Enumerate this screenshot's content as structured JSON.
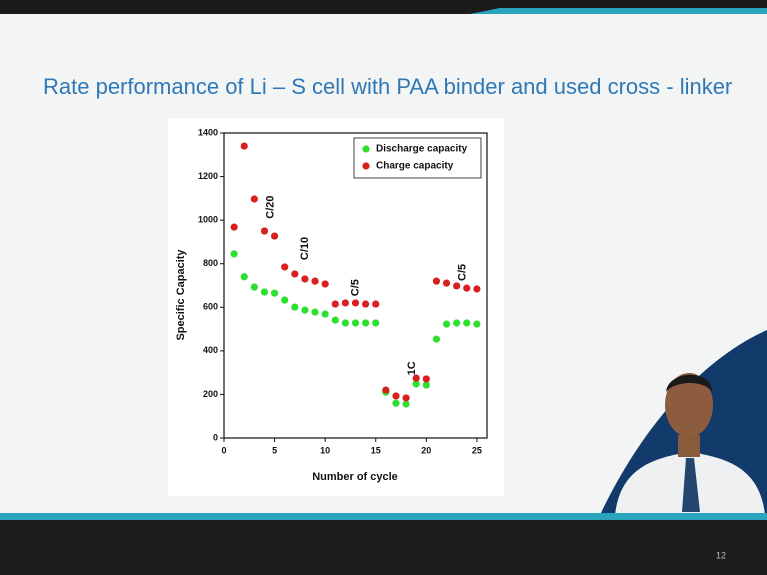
{
  "slide": {
    "title": "Rate performance of Li – S cell with PAA binder and used cross - linker",
    "page_number": "12"
  },
  "chart_data": {
    "type": "scatter",
    "x_label": "Number of cycle",
    "y_label": "Specific Capacity",
    "x": [
      1,
      2,
      3,
      4,
      5,
      6,
      7,
      8,
      9,
      10,
      11,
      12,
      13,
      14,
      15,
      16,
      17,
      18,
      19,
      20,
      21,
      22,
      23,
      24,
      25
    ],
    "series": [
      {
        "name": "Discharge capacity",
        "color": "#2ee02e",
        "values": [
          845,
          740,
          693,
          670,
          665,
          633,
          601,
          587,
          578,
          569,
          541,
          528,
          528,
          528,
          528,
          210,
          160,
          156,
          248,
          243,
          454,
          523,
          528,
          528,
          523
        ]
      },
      {
        "name": "Charge capacity",
        "color": "#d92020",
        "values": [
          968,
          1340,
          1097,
          950,
          927,
          785,
          753,
          730,
          720,
          707,
          615,
          620,
          620,
          615,
          615,
          220,
          193,
          184,
          275,
          271,
          720,
          711,
          698,
          688,
          684
        ]
      }
    ],
    "annotations": [
      "C/20",
      "C/10",
      "C/5",
      "1C",
      "C/5"
    ],
    "xlim": [
      0,
      26
    ],
    "xticks": [
      0,
      5,
      10,
      15,
      20,
      25
    ],
    "ylim": [
      0,
      1400
    ],
    "yticks": [
      0,
      200,
      400,
      600,
      800,
      1000,
      1200,
      1400
    ],
    "legend": "upper right"
  }
}
